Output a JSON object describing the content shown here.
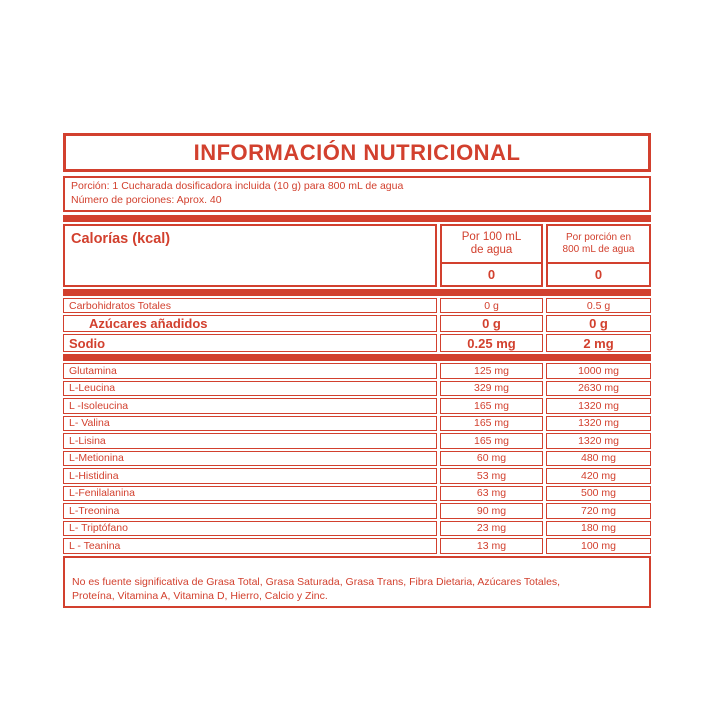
{
  "colors": {
    "accent": "#d2402e",
    "background": "#ffffff"
  },
  "label": {
    "title": "INFORMACIÓN NUTRICIONAL",
    "serving": {
      "line1": "Porción: 1 Cucharada dosificadora incluida (10 g) para 800 mL de agua",
      "line2": "Número de porciones: Aprox. 40"
    },
    "columns": {
      "per_100ml": "Por 100 mL\nde agua",
      "per_serving": "Por porción en\n800 mL de agua"
    },
    "calories": {
      "label": "Calorías (kcal)",
      "per100": "0",
      "perServing": "0"
    },
    "macro_rows": [
      {
        "label": "Carbohidratos Totales",
        "per100": "0 g",
        "perServing": "0.5 g"
      },
      {
        "label": "Azúcares añadidos",
        "per100": "0 g",
        "perServing": "0 g"
      },
      {
        "label": "Sodio",
        "per100": "0.25 mg",
        "perServing": "2 mg"
      }
    ],
    "amino_rows": [
      {
        "label": "Glutamina",
        "per100": "125 mg",
        "perServing": "1000 mg"
      },
      {
        "label": "L-Leucina",
        "per100": "329 mg",
        "perServing": "2630 mg"
      },
      {
        "label": "L -Isoleucina",
        "per100": "165 mg",
        "perServing": "1320 mg"
      },
      {
        "label": "L- Valina",
        "per100": "165 mg",
        "perServing": "1320 mg"
      },
      {
        "label": "L-Lisina",
        "per100": "165 mg",
        "perServing": "1320 mg"
      },
      {
        "label": "L-Metionina",
        "per100": "60 mg",
        "perServing": "480 mg"
      },
      {
        "label": "L-Histidina",
        "per100": "53 mg",
        "perServing": "420 mg"
      },
      {
        "label": "L-Fenilalanina",
        "per100": "63 mg",
        "perServing": "500 mg"
      },
      {
        "label": "L-Treonina",
        "per100": "90 mg",
        "perServing": "720 mg"
      },
      {
        "label": "L- Triptófano",
        "per100": "23 mg",
        "perServing": "180 mg"
      },
      {
        "label": "L - Teanina",
        "per100": "13 mg",
        "perServing": "100 mg"
      }
    ],
    "footnote": "No es fuente significativa de Grasa Total, Grasa Saturada, Grasa Trans, Fibra Dietaria, Azúcares Totales,\nProteína, Vitamina A, Vitamina D, Hierro, Calcio y Zinc."
  }
}
